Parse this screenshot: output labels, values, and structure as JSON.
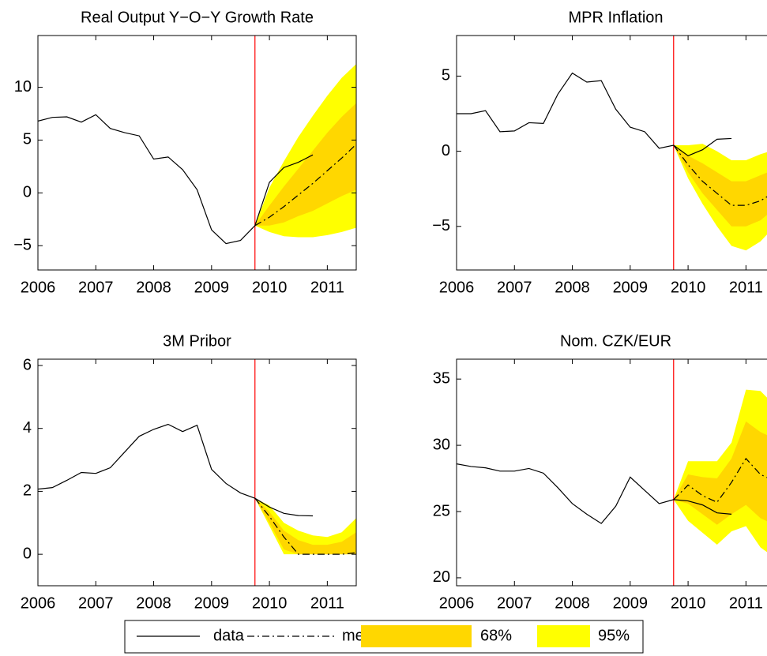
{
  "chart_data": [
    {
      "type": "fan",
      "title": "Real Output Y−O−Y Growth Rate",
      "xlim": [
        2006,
        2011.5
      ],
      "xticks": [
        2006,
        2007,
        2008,
        2009,
        2010,
        2011
      ],
      "ylim": [
        -7.3,
        14.9
      ],
      "yticks": [
        {
          "value": -5,
          "label": "−5"
        },
        0,
        5,
        10
      ],
      "vline": 2009.75,
      "vline_color": "#ff0000",
      "data": {
        "x": [
          2006,
          2006.25,
          2006.5,
          2006.75,
          2007,
          2007.25,
          2007.5,
          2007.75,
          2008,
          2008.25,
          2008.5,
          2008.75,
          2009,
          2009.25,
          2009.5,
          2009.75,
          2010,
          2010.25,
          2010.5,
          2010.75
        ],
        "values": [
          6.8,
          7.15,
          7.2,
          6.7,
          7.4,
          6.1,
          5.7,
          5.4,
          3.2,
          3.4,
          2.2,
          0.3,
          -3.5,
          -4.8,
          -4.5,
          -3.1,
          1.0,
          2.4,
          2.9,
          3.6
        ]
      },
      "forecast": {
        "x": [
          2009.75,
          2010,
          2010.25,
          2010.5,
          2010.75,
          2011,
          2011.25,
          2011.5
        ],
        "median": [
          -3.1,
          -2.3,
          -1.3,
          -0.2,
          0.9,
          2.1,
          3.3,
          4.6
        ],
        "band68": {
          "lower": [
            -3.1,
            -3.1,
            -2.8,
            -2.2,
            -1.7,
            -1.0,
            -0.3,
            0.3
          ],
          "upper": [
            -3.1,
            -1.2,
            0.6,
            2.3,
            4.0,
            5.7,
            7.2,
            8.5
          ]
        },
        "band95": {
          "lower": [
            -3.1,
            -3.7,
            -4.1,
            -4.2,
            -4.2,
            -4.0,
            -3.7,
            -3.3
          ],
          "upper": [
            -3.1,
            0.5,
            3.0,
            5.3,
            7.3,
            9.2,
            10.9,
            12.2
          ]
        }
      }
    },
    {
      "type": "fan",
      "title": "MPR Inflation",
      "xlim": [
        2006,
        2011.5
      ],
      "xticks": [
        2006,
        2007,
        2008,
        2009,
        2010,
        2011
      ],
      "ylim": [
        -7.9,
        7.7
      ],
      "yticks": [
        {
          "value": -5,
          "label": "−5"
        },
        0,
        5
      ],
      "vline": 2009.75,
      "vline_color": "#ff0000",
      "data": {
        "x": [
          2006,
          2006.25,
          2006.5,
          2006.75,
          2007,
          2007.25,
          2007.5,
          2007.75,
          2008,
          2008.25,
          2008.5,
          2008.75,
          2009,
          2009.25,
          2009.5,
          2009.75,
          2010,
          2010.25,
          2010.5,
          2010.75
        ],
        "values": [
          2.5,
          2.5,
          2.7,
          1.3,
          1.35,
          1.9,
          1.85,
          3.8,
          5.2,
          4.6,
          4.7,
          2.8,
          1.6,
          1.3,
          0.2,
          0.4,
          -0.3,
          0.1,
          0.8,
          0.85
        ]
      },
      "forecast": {
        "x": [
          2009.75,
          2010,
          2010.25,
          2010.5,
          2010.75,
          2011,
          2011.25,
          2011.5
        ],
        "median": [
          0.4,
          -0.9,
          -2.0,
          -2.8,
          -3.6,
          -3.6,
          -3.3,
          -2.7
        ],
        "band68": {
          "lower": [
            0.4,
            -1.4,
            -2.8,
            -3.9,
            -5.0,
            -5.0,
            -4.6,
            -3.8
          ],
          "upper": [
            0.4,
            -0.3,
            -0.8,
            -1.4,
            -2.0,
            -2.0,
            -1.6,
            -1.2
          ]
        },
        "band95": {
          "lower": [
            0.4,
            -1.8,
            -3.5,
            -5.0,
            -6.3,
            -6.6,
            -6.0,
            -5.0
          ],
          "upper": [
            0.4,
            0.4,
            0.5,
            0.0,
            -0.6,
            -0.6,
            -0.2,
            0.1
          ]
        }
      }
    },
    {
      "type": "fan",
      "title": "3M Pribor",
      "xlim": [
        2006,
        2011.5
      ],
      "xticks": [
        2006,
        2007,
        2008,
        2009,
        2010,
        2011
      ],
      "ylim": [
        -1,
        6.2
      ],
      "yticks": [
        0,
        2,
        4,
        6
      ],
      "vline": 2009.75,
      "vline_color": "#ff0000",
      "data": {
        "x": [
          2006,
          2006.25,
          2006.5,
          2006.75,
          2007,
          2007.25,
          2007.5,
          2007.75,
          2008,
          2008.25,
          2008.5,
          2008.75,
          2009,
          2009.25,
          2009.5,
          2009.75,
          2010,
          2010.25,
          2010.5,
          2010.75
        ],
        "values": [
          2.07,
          2.12,
          2.35,
          2.6,
          2.57,
          2.75,
          3.25,
          3.75,
          3.97,
          4.13,
          3.9,
          4.1,
          2.7,
          2.25,
          1.95,
          1.78,
          1.5,
          1.3,
          1.23,
          1.22
        ]
      },
      "forecast": {
        "x": [
          2009.75,
          2010,
          2010.25,
          2010.5,
          2010.75,
          2011,
          2011.25,
          2011.5
        ],
        "median": [
          1.78,
          1.2,
          0.55,
          0,
          0,
          0,
          0,
          0.05
        ],
        "band68": {
          "lower": [
            1.78,
            1.0,
            0.15,
            0,
            0,
            0,
            0,
            0
          ],
          "upper": [
            1.78,
            1.35,
            0.75,
            0.45,
            0.3,
            0.3,
            0.4,
            0.7
          ]
        },
        "band95": {
          "lower": [
            1.78,
            0.9,
            0,
            0,
            0,
            0,
            0,
            0
          ],
          "upper": [
            1.78,
            1.55,
            1.0,
            0.75,
            0.6,
            0.55,
            0.7,
            1.15
          ]
        }
      }
    },
    {
      "type": "fan",
      "title": "Nom. CZK/EUR",
      "xlim": [
        2006,
        2011.5
      ],
      "xticks": [
        2006,
        2007,
        2008,
        2009,
        2010,
        2011
      ],
      "ylim": [
        19.4,
        36.5
      ],
      "yticks": [
        20,
        25,
        30,
        35
      ],
      "vline": 2009.75,
      "vline_color": "#ff0000",
      "data": {
        "x": [
          2006,
          2006.25,
          2006.5,
          2006.75,
          2007,
          2007.25,
          2007.5,
          2007.75,
          2008,
          2008.25,
          2008.5,
          2008.75,
          2009,
          2009.25,
          2009.5,
          2009.75,
          2010,
          2010.25,
          2010.5,
          2010.75
        ],
        "values": [
          28.6,
          28.4,
          28.3,
          28.05,
          28.05,
          28.25,
          27.9,
          26.8,
          25.6,
          24.8,
          24.1,
          25.4,
          27.6,
          26.6,
          25.6,
          25.9,
          25.8,
          25.5,
          24.9,
          24.8
        ]
      },
      "forecast": {
        "x": [
          2009.75,
          2010,
          2010.25,
          2010.5,
          2010.75,
          2011,
          2011.25,
          2011.5
        ],
        "median": [
          25.9,
          27.0,
          26.2,
          25.7,
          27.2,
          29.0,
          27.8,
          27.3
        ],
        "band68": {
          "lower": [
            25.9,
            25.6,
            24.8,
            24.0,
            24.8,
            25.5,
            24.5,
            24.0
          ],
          "upper": [
            25.9,
            27.8,
            27.6,
            27.5,
            29.0,
            31.8,
            31.0,
            30.5
          ]
        },
        "band95": {
          "lower": [
            25.9,
            24.3,
            23.4,
            22.5,
            23.5,
            23.9,
            22.3,
            21.5
          ],
          "upper": [
            25.9,
            28.8,
            28.8,
            28.8,
            30.2,
            34.2,
            34.1,
            33.0
          ]
        }
      }
    }
  ],
  "legend": [
    {
      "name": "data",
      "color": "#000000",
      "dash": "solid"
    },
    {
      "name": "median",
      "color": "#000000",
      "dash": "dashdot"
    },
    {
      "name": "68%",
      "color": "#ffd700"
    },
    {
      "name": "95%",
      "color": "#ffff00"
    }
  ]
}
